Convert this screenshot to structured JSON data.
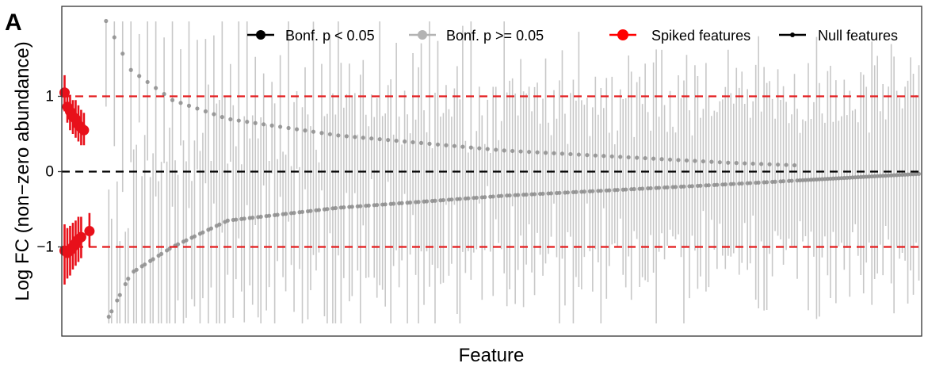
{
  "panel_label": "A",
  "chart_data": {
    "type": "scatter",
    "xlabel": "Feature",
    "ylabel": "Log FC (non−zero abundance)",
    "ylim": [
      -2,
      2
    ],
    "y_ticks": [
      {
        "value": 1,
        "label": "1"
      },
      {
        "value": 0,
        "label": "0"
      },
      {
        "value": -1,
        "label": "−1"
      }
    ],
    "reference_lines": [
      {
        "y": 1,
        "color": "#e41a1c",
        "style": "dashed"
      },
      {
        "y": 0,
        "color": "#000000",
        "style": "dashed"
      },
      {
        "y": -1,
        "color": "#e41a1c",
        "style": "dashed"
      }
    ],
    "grid": false,
    "legend_position": "top",
    "legend": [
      {
        "label": "Bonf. p < 0.05",
        "color": "#000000",
        "marker": "large"
      },
      {
        "label": "Bonf. p >= 0.05",
        "color": "#b3b3b3",
        "marker": "large"
      },
      {
        "label": "Spiked features",
        "color": "#ff0000",
        "marker": "large"
      },
      {
        "label": "Null features",
        "color": "#000000",
        "marker": "small"
      }
    ],
    "colors": {
      "spiked": "#e8101a",
      "null_point": "#8c8c8c",
      "null_bar": "#c8c8c8"
    },
    "series": [
      {
        "name": "Spiked features",
        "points": [
          {
            "x": 1,
            "y": 1.05,
            "low": 0.8,
            "high": 1.28
          },
          {
            "x": 2,
            "y": 0.86,
            "low": 0.65,
            "high": 1.08
          },
          {
            "x": 3,
            "y": 0.8,
            "low": 0.55,
            "high": 1.02
          },
          {
            "x": 4,
            "y": 0.73,
            "low": 0.5,
            "high": 0.95
          },
          {
            "x": 5,
            "y": 0.7,
            "low": 0.45,
            "high": 0.95
          },
          {
            "x": 6,
            "y": 0.62,
            "low": 0.4,
            "high": 0.88
          },
          {
            "x": 7,
            "y": 0.58,
            "low": 0.35,
            "high": 0.82
          },
          {
            "x": 8,
            "y": 0.55,
            "low": 0.35,
            "high": 0.78
          },
          {
            "x": 1,
            "y": -1.05,
            "low": -1.5,
            "high": -0.7
          },
          {
            "x": 2,
            "y": -1.08,
            "low": -1.42,
            "high": -0.75
          },
          {
            "x": 3,
            "y": -1.05,
            "low": -1.38,
            "high": -0.72
          },
          {
            "x": 4,
            "y": -1.0,
            "low": -1.3,
            "high": -0.68
          },
          {
            "x": 5,
            "y": -0.95,
            "low": -1.25,
            "high": -0.65
          },
          {
            "x": 6,
            "y": -0.9,
            "low": -1.2,
            "high": -0.6
          },
          {
            "x": 7,
            "y": -0.87,
            "low": -1.15,
            "high": -0.6
          },
          {
            "x": 10,
            "y": -0.79,
            "low": -1.0,
            "high": -0.55
          }
        ]
      },
      {
        "name": "Null features",
        "n": 295,
        "x_start": 16,
        "x_end": 310,
        "upper_curve": [
          {
            "x": 16,
            "y": 2.0
          },
          {
            "x": 25,
            "y": 1.35
          },
          {
            "x": 40,
            "y": 0.95
          },
          {
            "x": 60,
            "y": 0.7
          },
          {
            "x": 100,
            "y": 0.48
          },
          {
            "x": 160,
            "y": 0.28
          },
          {
            "x": 240,
            "y": 0.12
          },
          {
            "x": 310,
            "y": 0.02
          }
        ],
        "lower_curve": [
          {
            "x": 16,
            "y": -2.0
          },
          {
            "x": 25,
            "y": -1.35
          },
          {
            "x": 40,
            "y": -1.0
          },
          {
            "x": 60,
            "y": -0.65
          },
          {
            "x": 100,
            "y": -0.48
          },
          {
            "x": 160,
            "y": -0.32
          },
          {
            "x": 240,
            "y": -0.17
          },
          {
            "x": 310,
            "y": -0.03
          }
        ],
        "ci_halfwidth_range": [
          0.6,
          1.6
        ]
      }
    ]
  }
}
